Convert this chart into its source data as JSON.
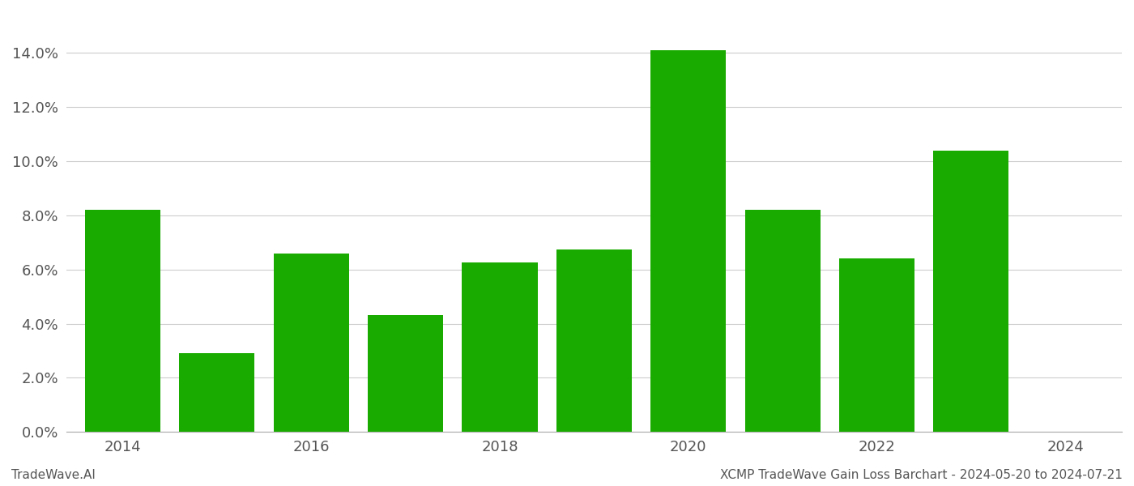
{
  "years": [
    2014,
    2015,
    2016,
    2017,
    2018,
    2019,
    2020,
    2021,
    2022,
    2023,
    2024
  ],
  "values": [
    0.082,
    0.029,
    0.066,
    0.043,
    0.0625,
    0.0675,
    0.141,
    0.082,
    0.064,
    0.104,
    null
  ],
  "bar_color": "#1aab00",
  "background_color": "#ffffff",
  "grid_color": "#cccccc",
  "ylim": [
    0,
    0.155
  ],
  "yticks": [
    0.0,
    0.02,
    0.04,
    0.06,
    0.08,
    0.1,
    0.12,
    0.14
  ],
  "xlim": [
    2013.4,
    2024.6
  ],
  "xticks": [
    2014,
    2016,
    2018,
    2020,
    2022,
    2024
  ],
  "tick_fontsize": 13,
  "footer_left": "TradeWave.AI",
  "footer_right": "XCMP TradeWave Gain Loss Barchart - 2024-05-20 to 2024-07-21",
  "footer_fontsize": 11,
  "bar_width": 0.8
}
